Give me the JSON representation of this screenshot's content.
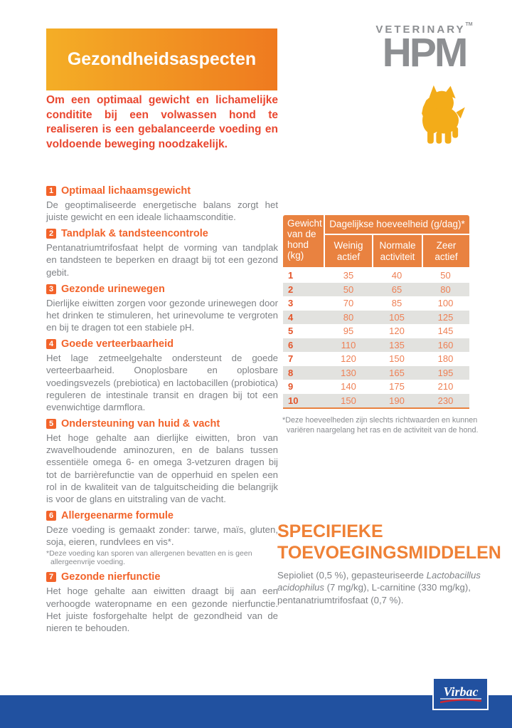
{
  "banner": {
    "title": "Gezondheidsaspecten"
  },
  "logo": {
    "veterinary": "VETERINARY",
    "tm": "TM",
    "hpm": "HPM"
  },
  "intro": "Om een optimaal gewicht en lichamelijke conditite bij een volwassen hond te realiseren is een gebalanceerde voeding en voldoende beweging noodzakelijk.",
  "sections": [
    {
      "num": "1",
      "title": "Optimaal lichaamsgewicht",
      "body": "De geoptimaliseerde energetische balans zorgt het juiste gewicht en een ideale lichaamsconditie."
    },
    {
      "num": "2",
      "title": "Tandplak & tandsteencontrole",
      "body": "Pentanatriumtrifosfaat helpt de vorming van tandplak en tandsteen te beperken en draagt bij tot een gezond gebit."
    },
    {
      "num": "3",
      "title": "Gezonde urinewegen",
      "body": "Dierlijke eiwitten zorgen voor gezonde urinewegen door het drinken te stimuleren, het urinevolume te vergroten en bij te dragen tot een stabiele pH."
    },
    {
      "num": "4",
      "title": "Goede verteerbaarheid",
      "body": "Het lage zetmeelgehalte ondersteunt de goede verteerbaarheid. Onoplosbare en oplosbare voedingsvezels (prebiotica) en lactobacillen (probiotica) reguleren de intestinale transit en dragen bij tot een evenwichtige darmflora."
    },
    {
      "num": "5",
      "title": "Ondersteuning van huid & vacht",
      "body": "Het hoge gehalte aan dierlijke eiwitten, bron van zwavelhoudende aminozuren, en de balans tussen essentiële omega 6- en omega 3-vetzuren dragen bij tot de barrièrefunctie van de opperhuid en spelen een rol in de kwaliteit van de talguitscheiding die belangrijk is voor de glans en uitstraling van de vacht."
    },
    {
      "num": "6",
      "title": "Allergeenarme formule",
      "body": "Deze voeding is gemaakt zonder: tarwe, maïs, gluten, soja, eieren, rundvlees en vis*.",
      "footnote": "*Deze voeding kan sporen van allergenen bevatten en is geen allergeenvrije voeding."
    },
    {
      "num": "7",
      "title": "Gezonde nierfunctie",
      "body": "Het hoge gehalte aan eiwitten draagt bij aan een verhoogde wateropname en een gezonde nierfunctie. Het juiste fosforgehalte helpt de gezondheid van de nieren te behouden."
    }
  ],
  "chart_data": {
    "type": "table",
    "title": "Dagelijkse hoeveelheid (g/dag)*",
    "row_header": "Gewicht van de hond (kg)",
    "columns": [
      "Weinig actief",
      "Normale activiteit",
      "Zeer actief"
    ],
    "rows": [
      [
        1,
        35,
        40,
        50
      ],
      [
        2,
        50,
        65,
        80
      ],
      [
        3,
        70,
        85,
        100
      ],
      [
        4,
        80,
        105,
        125
      ],
      [
        5,
        95,
        120,
        145
      ],
      [
        6,
        110,
        135,
        160
      ],
      [
        7,
        120,
        150,
        180
      ],
      [
        8,
        130,
        165,
        195
      ],
      [
        9,
        140,
        175,
        210
      ],
      [
        10,
        150,
        190,
        230
      ]
    ],
    "footnote": "*Deze hoeveelheden zijn slechts richtwaarden en kunnen variëren naargelang het ras en de activiteit van de hond."
  },
  "additives": {
    "title_line1": "SPECIFIEKE",
    "title_line2": "TOEVOEGINGSMIDDELEN",
    "body_prefix": "Sepioliet (0,5 %), gepasteuriseerde ",
    "body_italic": "Lactobacillus acidophilus",
    "body_suffix": " (7 mg/kg), L-carnitine (330 mg/kg), pentanatriumtrifosfaat (0,7 %)."
  },
  "footer": {
    "brand": "Virbac"
  },
  "colors": {
    "orange-heading": "#F2632A",
    "orange-table": "#E98240",
    "orange-value": "#EE8055",
    "orange-dark-num": "#E4552A",
    "orange-additives": "#EF8136",
    "red-intro": "#E9472F",
    "gray-body": "#7F8286",
    "gray-note": "#8A8C90",
    "gray-logo": "#8D8F92",
    "blue-brand": "#2151A0",
    "row-alt": "#E2E2DF",
    "dog": "#F3AC19",
    "banner-left": "#F4AE26",
    "banner-right": "#EF7A1F"
  }
}
